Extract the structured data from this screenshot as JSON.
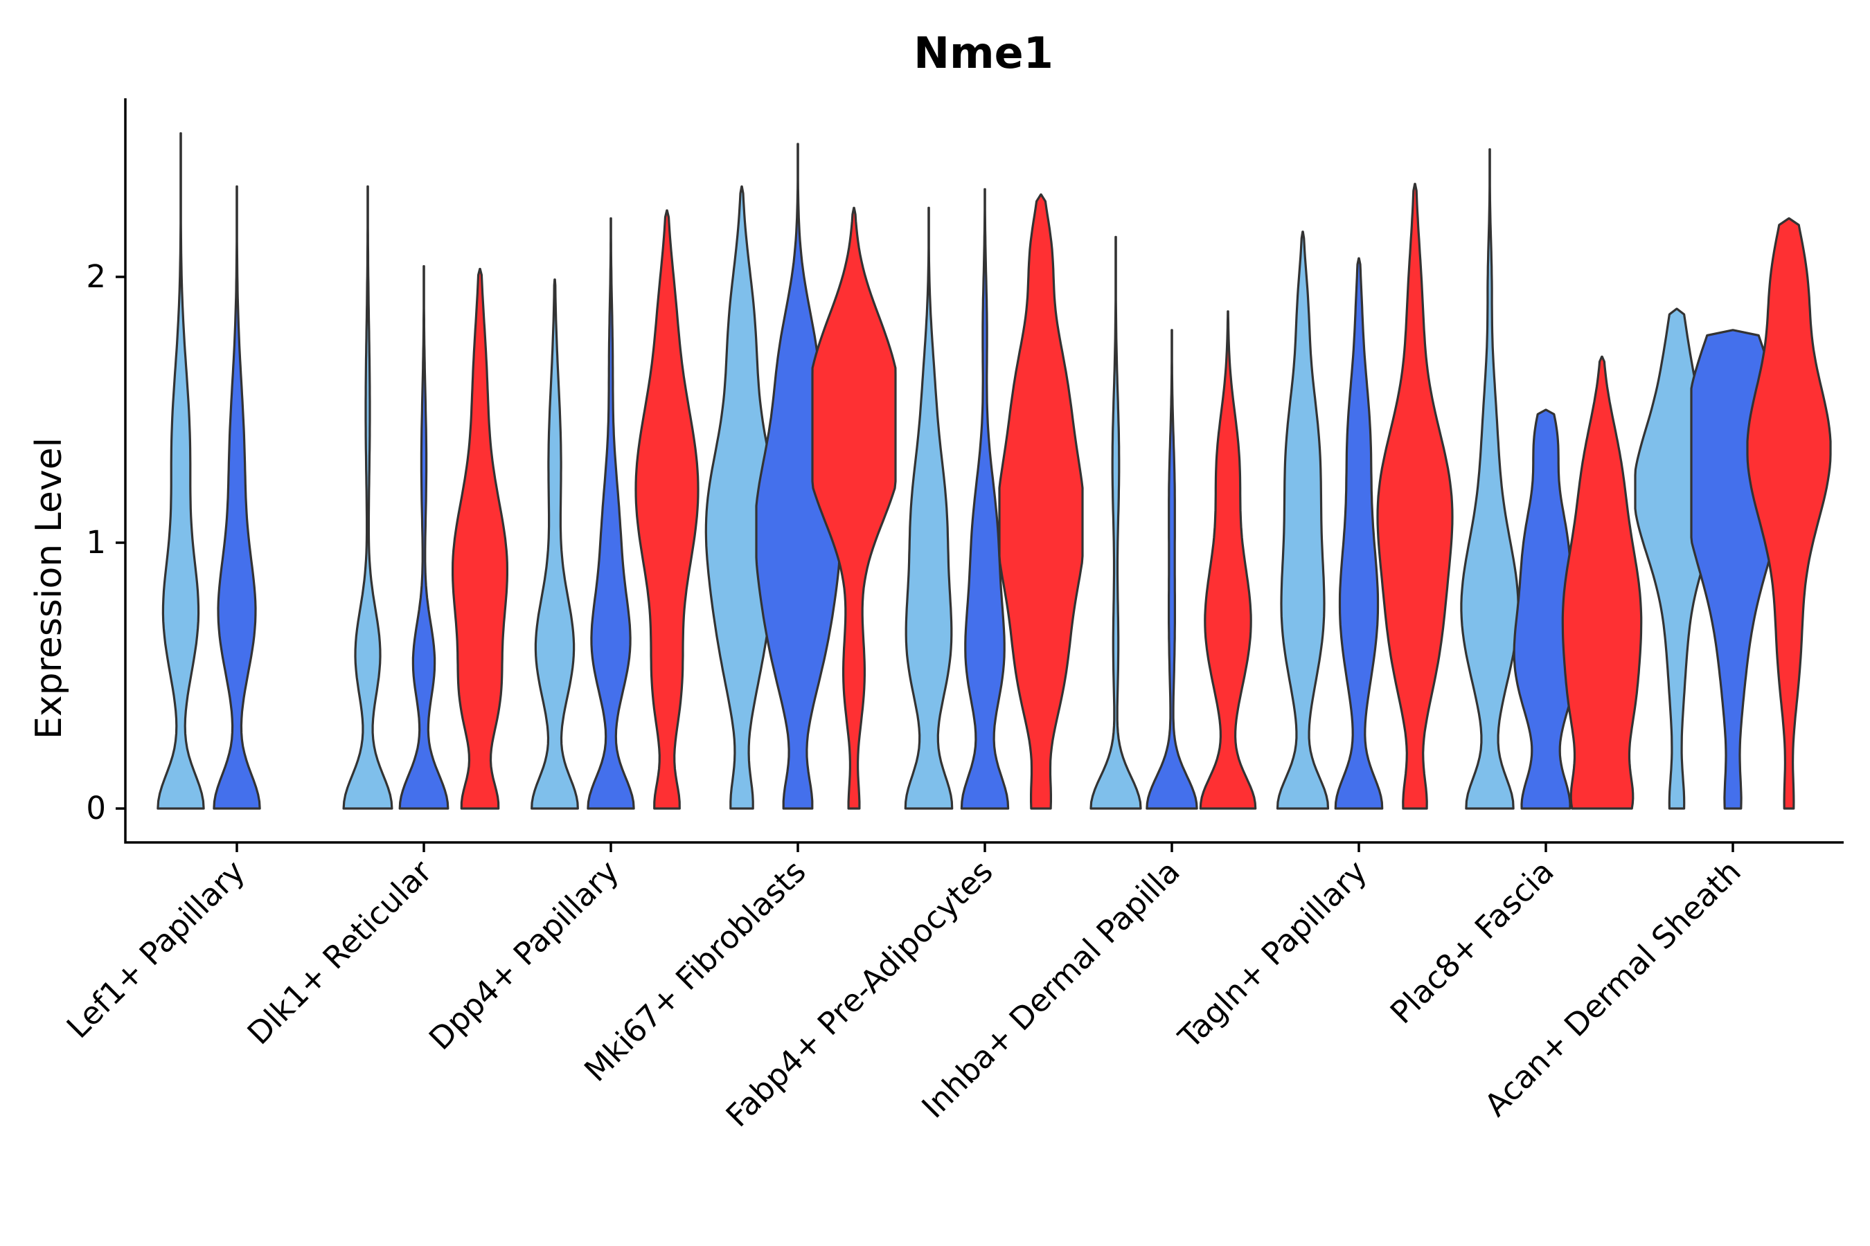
{
  "chart_data": {
    "type": "violin",
    "title": "Nme1",
    "xlabel": "",
    "ylabel": "Expression Level",
    "ylim": [
      -0.13,
      2.67
    ],
    "yticks": [
      0,
      1,
      2
    ],
    "categories": [
      "Lef1+ Papillary",
      "Dlk1+ Reticular",
      "Dpp4+ Papillary",
      "Mki67+ Fibroblasts",
      "Fabp4+ Pre-Adipocytes",
      "Inhba+ Dermal Papilla",
      "Tagln+ Papillary",
      "Plac8+ Fascia",
      "Acan+ Dermal Sheath"
    ],
    "groups": [
      {
        "name": "group-1",
        "color": "#7FBFEB"
      },
      {
        "name": "group-2",
        "color": "#4470EC"
      },
      {
        "name": "group-3",
        "color": "#FE3033"
      }
    ],
    "violins": [
      {
        "category": 0,
        "group": 0,
        "max": 2.54,
        "modes": [
          [
            0.0,
            0.55,
            0.13
          ],
          [
            0.72,
            0.4,
            0.22
          ],
          [
            1.35,
            0.22,
            0.3
          ]
        ]
      },
      {
        "category": 0,
        "group": 1,
        "max": 2.34,
        "modes": [
          [
            0.0,
            0.55,
            0.13
          ],
          [
            0.72,
            0.42,
            0.22
          ],
          [
            1.3,
            0.18,
            0.3
          ]
        ]
      },
      {
        "category": 1,
        "group": 0,
        "max": 2.34,
        "modes": [
          [
            0.0,
            0.58,
            0.13
          ],
          [
            0.58,
            0.3,
            0.17
          ],
          [
            1.5,
            0.05,
            0.3
          ]
        ]
      },
      {
        "category": 1,
        "group": 1,
        "max": 2.04,
        "modes": [
          [
            0.0,
            0.58,
            0.13
          ],
          [
            0.55,
            0.26,
            0.15
          ],
          [
            1.3,
            0.06,
            0.25
          ]
        ]
      },
      {
        "category": 1,
        "group": 2,
        "max": 2.03,
        "modes": [
          [
            0.0,
            0.42,
            0.1
          ],
          [
            0.4,
            0.35,
            0.17
          ],
          [
            0.9,
            0.65,
            0.28
          ],
          [
            1.6,
            0.15,
            0.25
          ]
        ]
      },
      {
        "category": 2,
        "group": 0,
        "max": 1.99,
        "modes": [
          [
            0.0,
            0.55,
            0.12
          ],
          [
            0.6,
            0.45,
            0.2
          ],
          [
            1.3,
            0.15,
            0.3
          ]
        ]
      },
      {
        "category": 2,
        "group": 1,
        "max": 2.22,
        "modes": [
          [
            0.0,
            0.55,
            0.12
          ],
          [
            0.6,
            0.4,
            0.18
          ],
          [
            1.0,
            0.22,
            0.25
          ],
          [
            1.7,
            0.04,
            0.2
          ]
        ]
      },
      {
        "category": 2,
        "group": 2,
        "max": 2.25,
        "modes": [
          [
            0.0,
            0.28,
            0.1
          ],
          [
            0.45,
            0.28,
            0.2
          ],
          [
            1.2,
            0.75,
            0.35
          ],
          [
            1.9,
            0.12,
            0.2
          ]
        ]
      },
      {
        "category": 3,
        "group": 0,
        "max": 2.34,
        "modes": [
          [
            0.0,
            0.25,
            0.12
          ],
          [
            0.6,
            0.35,
            0.25
          ],
          [
            1.1,
            0.8,
            0.3
          ],
          [
            1.8,
            0.28,
            0.25
          ]
        ]
      },
      {
        "category": 3,
        "group": 1,
        "max": 2.5,
        "modes": [
          [
            0.0,
            0.32,
            0.12
          ],
          [
            0.6,
            0.45,
            0.25
          ],
          [
            1.1,
            0.95,
            0.3
          ],
          [
            1.7,
            0.35,
            0.22
          ]
        ]
      },
      {
        "category": 3,
        "group": 2,
        "max": 2.26,
        "modes": [
          [
            0.0,
            0.12,
            0.1
          ],
          [
            0.5,
            0.25,
            0.2
          ],
          [
            1.3,
            1.0,
            0.25
          ],
          [
            1.7,
            0.65,
            0.22
          ]
        ]
      },
      {
        "category": 4,
        "group": 0,
        "max": 2.26,
        "modes": [
          [
            0.0,
            0.55,
            0.13
          ],
          [
            0.6,
            0.48,
            0.22
          ],
          [
            1.1,
            0.4,
            0.25
          ],
          [
            1.6,
            0.1,
            0.2
          ]
        ]
      },
      {
        "category": 4,
        "group": 1,
        "max": 2.33,
        "modes": [
          [
            0.0,
            0.55,
            0.13
          ],
          [
            0.55,
            0.4,
            0.2
          ],
          [
            1.0,
            0.3,
            0.25
          ],
          [
            1.8,
            0.05,
            0.2
          ]
        ]
      },
      {
        "category": 4,
        "group": 2,
        "max": 2.31,
        "modes": [
          [
            0.0,
            0.2,
            0.12
          ],
          [
            0.5,
            0.45,
            0.22
          ],
          [
            1.05,
            1.0,
            0.28
          ],
          [
            1.6,
            0.5,
            0.25
          ],
          [
            2.1,
            0.2,
            0.15
          ]
        ]
      },
      {
        "category": 5,
        "group": 0,
        "max": 2.15,
        "modes": [
          [
            0.0,
            0.6,
            0.12
          ],
          [
            0.6,
            0.06,
            0.2
          ],
          [
            1.3,
            0.08,
            0.25
          ]
        ]
      },
      {
        "category": 5,
        "group": 1,
        "max": 1.8,
        "modes": [
          [
            0.0,
            0.6,
            0.12
          ],
          [
            0.7,
            0.07,
            0.25
          ],
          [
            1.2,
            0.06,
            0.2
          ]
        ]
      },
      {
        "category": 5,
        "group": 2,
        "max": 1.87,
        "modes": [
          [
            0.0,
            0.65,
            0.12
          ],
          [
            0.7,
            0.55,
            0.25
          ],
          [
            1.3,
            0.25,
            0.2
          ]
        ]
      },
      {
        "category": 6,
        "group": 0,
        "max": 2.17,
        "modes": [
          [
            0.0,
            0.6,
            0.12
          ],
          [
            0.7,
            0.45,
            0.25
          ],
          [
            1.3,
            0.4,
            0.3
          ],
          [
            1.9,
            0.08,
            0.15
          ]
        ]
      },
      {
        "category": 6,
        "group": 1,
        "max": 2.07,
        "modes": [
          [
            0.0,
            0.55,
            0.12
          ],
          [
            0.75,
            0.45,
            0.28
          ],
          [
            1.4,
            0.25,
            0.25
          ],
          [
            1.9,
            0.04,
            0.15
          ]
        ]
      },
      {
        "category": 6,
        "group": 2,
        "max": 2.35,
        "modes": [
          [
            0.0,
            0.26,
            0.12
          ],
          [
            0.6,
            0.45,
            0.25
          ],
          [
            1.15,
            0.85,
            0.3
          ],
          [
            1.9,
            0.15,
            0.25
          ]
        ]
      },
      {
        "category": 7,
        "group": 0,
        "max": 2.48,
        "modes": [
          [
            0.0,
            0.55,
            0.12
          ],
          [
            0.75,
            0.68,
            0.28
          ],
          [
            1.4,
            0.15,
            0.25
          ],
          [
            2.0,
            0.04,
            0.15
          ]
        ]
      },
      {
        "category": 7,
        "group": 1,
        "max": 1.5,
        "modes": [
          [
            0.0,
            0.55,
            0.12
          ],
          [
            0.55,
            0.72,
            0.22
          ],
          [
            1.0,
            0.45,
            0.2
          ],
          [
            1.4,
            0.22,
            0.12
          ]
        ]
      },
      {
        "category": 7,
        "group": 2,
        "max": 1.7,
        "modes": [
          [
            0.0,
            0.55,
            0.12
          ],
          [
            0.3,
            0.4,
            0.2
          ],
          [
            0.75,
            0.9,
            0.3
          ],
          [
            1.3,
            0.3,
            0.2
          ]
        ]
      },
      {
        "category": 8,
        "group": 0,
        "max": 1.88,
        "modes": [
          [
            0.0,
            0.15,
            0.12
          ],
          [
            0.6,
            0.2,
            0.3
          ],
          [
            1.2,
            1.0,
            0.25
          ],
          [
            1.7,
            0.2,
            0.2
          ]
        ]
      },
      {
        "category": 8,
        "group": 1,
        "max": 1.8,
        "modes": [
          [
            0.0,
            0.15,
            0.12
          ],
          [
            0.55,
            0.25,
            0.3
          ],
          [
            1.15,
            1.0,
            0.28
          ],
          [
            1.6,
            0.7,
            0.25
          ]
        ]
      },
      {
        "category": 8,
        "group": 2,
        "max": 2.22,
        "modes": [
          [
            0.0,
            0.1,
            0.12
          ],
          [
            0.6,
            0.25,
            0.25
          ],
          [
            1.35,
            1.0,
            0.3
          ],
          [
            2.0,
            0.35,
            0.2
          ]
        ]
      }
    ]
  }
}
